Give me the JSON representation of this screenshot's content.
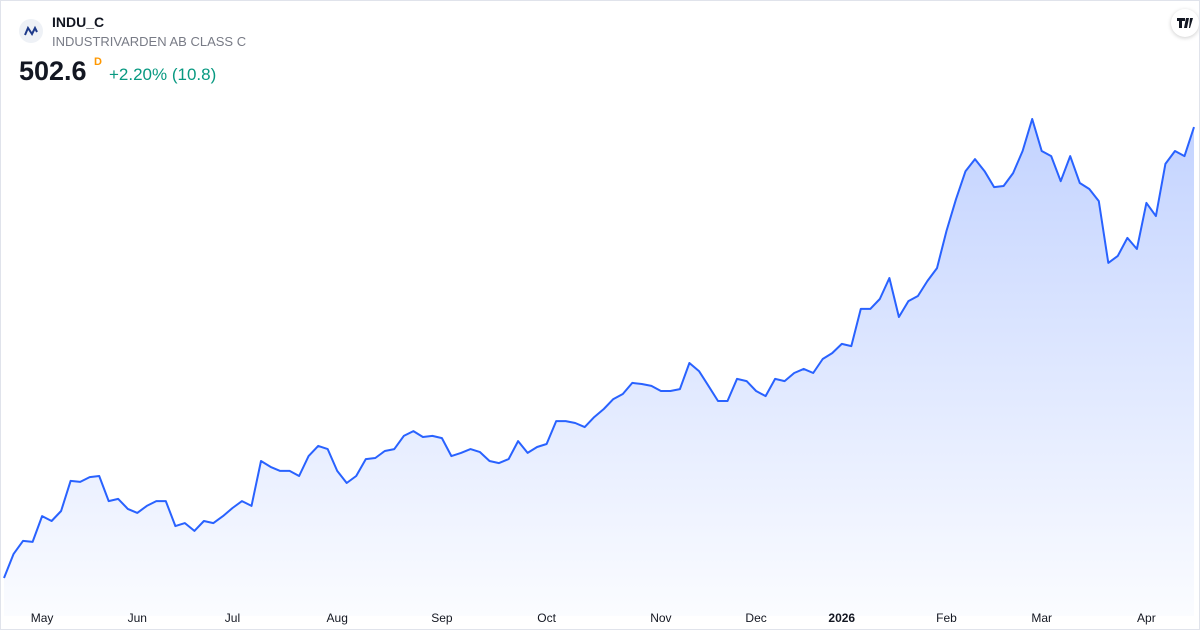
{
  "chart_data": {
    "type": "area",
    "title": "INDU_C",
    "subtitle": "INDUSTRIVARDEN AB CLASS C",
    "price": 502.6,
    "interval": "D",
    "change": "+2.20% (10.8)",
    "color": "#2962ff",
    "categories": [
      null,
      null,
      null,
      null,
      "May",
      null,
      null,
      null,
      null,
      null,
      null,
      null,
      null,
      null,
      "Jun",
      null,
      null,
      null,
      null,
      null,
      null,
      null,
      null,
      null,
      "Jul",
      null,
      null,
      null,
      null,
      null,
      null,
      null,
      null,
      null,
      null,
      "Aug",
      null,
      null,
      null,
      null,
      null,
      null,
      null,
      null,
      null,
      null,
      "Sep",
      null,
      null,
      null,
      null,
      null,
      null,
      null,
      null,
      null,
      null,
      "Oct",
      null,
      null,
      null,
      null,
      null,
      null,
      null,
      null,
      null,
      null,
      null,
      "Nov",
      null,
      null,
      null,
      null,
      null,
      null,
      null,
      null,
      null,
      "Dec",
      null,
      null,
      null,
      null,
      null,
      null,
      null,
      null,
      "2026",
      null,
      null,
      null,
      null,
      null,
      null,
      null,
      null,
      null,
      null,
      "Feb",
      null,
      null,
      null,
      null,
      null,
      null,
      null,
      null,
      null,
      "Mar",
      null,
      null,
      null,
      null,
      null,
      null,
      null,
      null,
      null,
      null,
      "Apr",
      null,
      null,
      null,
      null,
      null
    ],
    "values": [
      335.0,
      343.9,
      348.8,
      348.4,
      358.0,
      356.2,
      359.9,
      371.1,
      370.7,
      372.5,
      372.9,
      363.6,
      364.4,
      360.7,
      359.2,
      361.8,
      363.6,
      363.6,
      354.3,
      355.4,
      352.5,
      356.2,
      355.4,
      358.0,
      361.0,
      363.6,
      361.8,
      378.5,
      376.3,
      374.8,
      374.8,
      372.9,
      380.3,
      384.1,
      382.9,
      374.8,
      370.3,
      372.9,
      379.2,
      379.6,
      382.2,
      382.9,
      387.8,
      389.6,
      387.4,
      387.8,
      387.0,
      380.3,
      381.5,
      382.9,
      381.8,
      378.5,
      377.7,
      379.2,
      385.9,
      381.5,
      383.7,
      384.8,
      393.3,
      393.3,
      392.6,
      391.1,
      394.8,
      397.8,
      401.5,
      403.4,
      407.5,
      407.1,
      406.4,
      404.5,
      404.5,
      405.2,
      414.9,
      411.9,
      406.4,
      400.8,
      400.8,
      409.0,
      408.2,
      404.5,
      402.6,
      409.0,
      408.2,
      411.2,
      412.7,
      411.2,
      416.4,
      418.6,
      422.0,
      421.2,
      435.0,
      435.0,
      438.7,
      446.5,
      432.0,
      437.9,
      439.8,
      445.4,
      450.2,
      464.0,
      475.8,
      486.2,
      490.7,
      486.2,
      480.3,
      480.7,
      485.5,
      493.7,
      505.6,
      493.7,
      491.8,
      482.5,
      491.8,
      481.8,
      479.6,
      475.1,
      452.1,
      454.7,
      461.4,
      457.3,
      474.4,
      469.5,
      488.9,
      493.7,
      491.8,
      502.6
    ]
  }
}
